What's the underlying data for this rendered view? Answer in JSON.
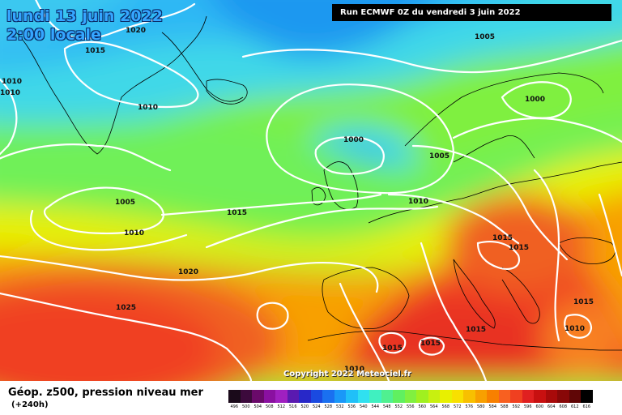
{
  "header": {
    "date_line": "lundi 13 juin 2022",
    "time_line": "2:00 locale",
    "run_info": "Run ECMWF 0Z du vendredi 3 juin 2022",
    "copyright": "Copyright 2022 Meteociel.fr"
  },
  "footer": {
    "title": "Géop. z500, pression niveau mer",
    "subtitle": "(+240h)"
  },
  "colors": {
    "title_text": "#35a6ff",
    "run_box_bg": "#000000",
    "isobar": "#ffffff"
  },
  "scale": {
    "labels": [
      "496",
      "500",
      "504",
      "508",
      "512",
      "516",
      "520",
      "524",
      "528",
      "532",
      "536",
      "540",
      "544",
      "548",
      "552",
      "556",
      "560",
      "564",
      "568",
      "572",
      "576",
      "580",
      "584",
      "588",
      "592",
      "596",
      "600",
      "604",
      "608",
      "612",
      "616"
    ],
    "colors": [
      "#1a0a1a",
      "#3c0a3c",
      "#6a0a6a",
      "#8a10a0",
      "#a020c0",
      "#5a1ab0",
      "#2828c8",
      "#1a4ae0",
      "#1a70f0",
      "#1a98f8",
      "#20c0f8",
      "#30e0f0",
      "#40f0c0",
      "#50f090",
      "#60f060",
      "#80f040",
      "#a0f020",
      "#c8f010",
      "#e8f000",
      "#f8e000",
      "#f8c000",
      "#f8a000",
      "#f88000",
      "#f86020",
      "#f04020",
      "#e02020",
      "#c81010",
      "#a80a0a",
      "#880808",
      "#600606",
      "#000000"
    ]
  },
  "isobar_labels": [
    {
      "text": "1020"
    },
    {
      "text": "1015"
    },
    {
      "text": "1010"
    },
    {
      "text": "1010"
    },
    {
      "text": "1010"
    },
    {
      "text": "1005"
    },
    {
      "text": "1000"
    },
    {
      "text": "1000"
    },
    {
      "text": "1005"
    },
    {
      "text": "1010"
    },
    {
      "text": "1015"
    },
    {
      "text": "1005"
    },
    {
      "text": "1010"
    },
    {
      "text": "1020"
    },
    {
      "text": "1025"
    },
    {
      "text": "1015"
    },
    {
      "text": "1015"
    },
    {
      "text": "1015"
    },
    {
      "text": "1015"
    },
    {
      "text": "1015"
    },
    {
      "text": "1010"
    },
    {
      "text": "1010"
    },
    {
      "text": "1015"
    },
    {
      "text": "1015"
    }
  ]
}
